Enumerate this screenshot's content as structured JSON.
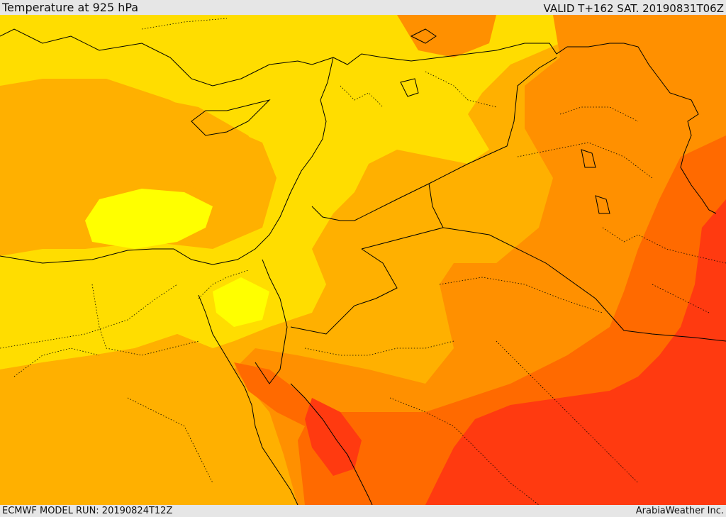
{
  "header": {
    "title": "Temperature at 925 hPa",
    "valid": "VALID T+162 SAT. 20190831T06Z"
  },
  "footer": {
    "model_run": "ECMWF MODEL RUN: 20190824T12Z",
    "brand": "ArabiaWeather Inc."
  },
  "map": {
    "variable": "temperature",
    "level": "925 hPa",
    "colors": {
      "coolest": "#ffff00",
      "cool": "#ffdd00",
      "mild": "#ffb000",
      "warm": "#ff9000",
      "hot": "#ff6a00",
      "hottest": "#ff3a10"
    }
  }
}
